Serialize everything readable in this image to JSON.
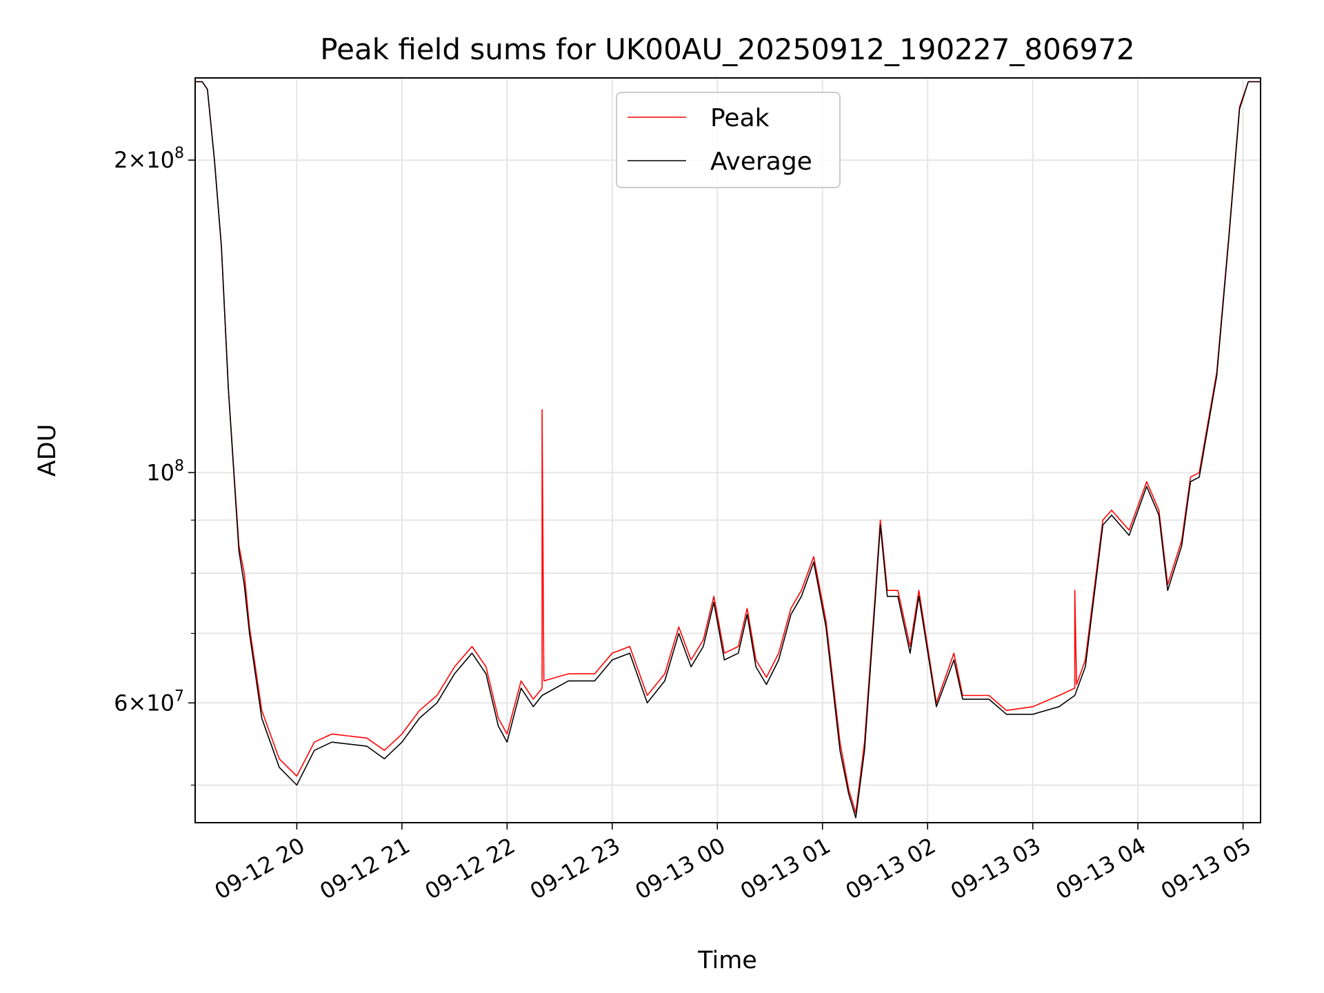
{
  "chart_data": {
    "type": "line",
    "title": "Peak field sums for UK00AU_20250912_190227_806972",
    "xlabel": "Time",
    "ylabel": "ADU",
    "yscale": "log",
    "ylim": [
      46000000,
      240000000
    ],
    "xlim": [
      "2025-09-12 19:02",
      "2025-09-13 05:10"
    ],
    "grid": true,
    "legend_position": "top-center",
    "x_ticks": [
      {
        "t": "2025-09-12 20:00",
        "label": "09-12 20"
      },
      {
        "t": "2025-09-12 21:00",
        "label": "09-12 21"
      },
      {
        "t": "2025-09-12 22:00",
        "label": "09-12 22"
      },
      {
        "t": "2025-09-12 23:00",
        "label": "09-12 23"
      },
      {
        "t": "2025-09-13 00:00",
        "label": "09-13 00"
      },
      {
        "t": "2025-09-13 01:00",
        "label": "09-13 01"
      },
      {
        "t": "2025-09-13 02:00",
        "label": "09-13 02"
      },
      {
        "t": "2025-09-13 03:00",
        "label": "09-13 03"
      },
      {
        "t": "2025-09-13 04:00",
        "label": "09-13 04"
      },
      {
        "t": "2025-09-13 05:00",
        "label": "09-13 05"
      }
    ],
    "y_ticks": [
      {
        "value": 200000000,
        "mantissa": "2",
        "exp": "8"
      },
      {
        "value": 100000000,
        "mantissa": "",
        "exp": "8"
      },
      {
        "value": 60000000,
        "mantissa": "6",
        "exp": "7"
      }
    ],
    "y_minor_ticks": [
      50000000,
      70000000,
      80000000,
      90000000
    ],
    "series": [
      {
        "name": "Peak",
        "color": "#ff0000",
        "points": [
          [
            "2025-09-12 19:02",
            238000000
          ],
          [
            "2025-09-12 19:06",
            238000000
          ],
          [
            "2025-09-12 19:09",
            234000000
          ],
          [
            "2025-09-12 19:13",
            200000000
          ],
          [
            "2025-09-12 19:17",
            165000000
          ],
          [
            "2025-09-12 19:21",
            120000000
          ],
          [
            "2025-09-12 19:27",
            85000000
          ],
          [
            "2025-09-12 19:30",
            80000000
          ],
          [
            "2025-09-12 19:33",
            71000000
          ],
          [
            "2025-09-12 19:40",
            59000000
          ],
          [
            "2025-09-12 19:50",
            53000000
          ],
          [
            "2025-09-12 20:00",
            51000000
          ],
          [
            "2025-09-12 20:10",
            55000000
          ],
          [
            "2025-09-12 20:20",
            56000000
          ],
          [
            "2025-09-12 20:40",
            55500000
          ],
          [
            "2025-09-12 20:50",
            54000000
          ],
          [
            "2025-09-12 21:00",
            56000000
          ],
          [
            "2025-09-12 21:10",
            59000000
          ],
          [
            "2025-09-12 21:20",
            61000000
          ],
          [
            "2025-09-12 21:30",
            65000000
          ],
          [
            "2025-09-12 21:40",
            68000000
          ],
          [
            "2025-09-12 21:48",
            65000000
          ],
          [
            "2025-09-12 21:55",
            58000000
          ],
          [
            "2025-09-12 22:00",
            56000000
          ],
          [
            "2025-09-12 22:08",
            63000000
          ],
          [
            "2025-09-12 22:15",
            60500000
          ],
          [
            "2025-09-12 22:20",
            62000000
          ],
          [
            "2025-09-12 22:20",
            115000000
          ],
          [
            "2025-09-12 22:21",
            63000000
          ],
          [
            "2025-09-12 22:35",
            64000000
          ],
          [
            "2025-09-12 22:50",
            64000000
          ],
          [
            "2025-09-12 23:00",
            67000000
          ],
          [
            "2025-09-12 23:10",
            68000000
          ],
          [
            "2025-09-12 23:20",
            61000000
          ],
          [
            "2025-09-12 23:30",
            64000000
          ],
          [
            "2025-09-12 23:38",
            71000000
          ],
          [
            "2025-09-12 23:45",
            66000000
          ],
          [
            "2025-09-12 23:52",
            69000000
          ],
          [
            "2025-09-12 23:58",
            76000000
          ],
          [
            "2025-09-13 00:04",
            67000000
          ],
          [
            "2025-09-13 00:12",
            68000000
          ],
          [
            "2025-09-13 00:17",
            74000000
          ],
          [
            "2025-09-13 00:22",
            66000000
          ],
          [
            "2025-09-13 00:28",
            63500000
          ],
          [
            "2025-09-13 00:35",
            67000000
          ],
          [
            "2025-09-13 00:42",
            74000000
          ],
          [
            "2025-09-13 00:48",
            77000000
          ],
          [
            "2025-09-13 00:55",
            83000000
          ],
          [
            "2025-09-13 01:02",
            72000000
          ],
          [
            "2025-09-13 01:10",
            55000000
          ],
          [
            "2025-09-13 01:15",
            49500000
          ],
          [
            "2025-09-13 01:19",
            47000000
          ],
          [
            "2025-09-13 01:24",
            55000000
          ],
          [
            "2025-09-13 01:30",
            76000000
          ],
          [
            "2025-09-13 01:33",
            90000000
          ],
          [
            "2025-09-13 01:37",
            77000000
          ],
          [
            "2025-09-13 01:43",
            77000000
          ],
          [
            "2025-09-13 01:50",
            68000000
          ],
          [
            "2025-09-13 01:55",
            77000000
          ],
          [
            "2025-09-13 02:05",
            60000000
          ],
          [
            "2025-09-13 02:15",
            67000000
          ],
          [
            "2025-09-13 02:20",
            61000000
          ],
          [
            "2025-09-13 02:35",
            61000000
          ],
          [
            "2025-09-13 02:45",
            59000000
          ],
          [
            "2025-09-13 03:00",
            59500000
          ],
          [
            "2025-09-13 03:15",
            61000000
          ],
          [
            "2025-09-13 03:24",
            62000000
          ],
          [
            "2025-09-13 03:24",
            77000000
          ],
          [
            "2025-09-13 03:25",
            62500000
          ],
          [
            "2025-09-13 03:30",
            66000000
          ],
          [
            "2025-09-13 03:40",
            90000000
          ],
          [
            "2025-09-13 03:45",
            92000000
          ],
          [
            "2025-09-13 03:55",
            88000000
          ],
          [
            "2025-09-13 04:05",
            98000000
          ],
          [
            "2025-09-13 04:12",
            92000000
          ],
          [
            "2025-09-13 04:17",
            78000000
          ],
          [
            "2025-09-13 04:25",
            86000000
          ],
          [
            "2025-09-13 04:30",
            99000000
          ],
          [
            "2025-09-13 04:35",
            100000000
          ],
          [
            "2025-09-13 04:45",
            125000000
          ],
          [
            "2025-09-13 04:52",
            170000000
          ],
          [
            "2025-09-13 04:58",
            225000000
          ],
          [
            "2025-09-13 05:03",
            238000000
          ],
          [
            "2025-09-13 05:10",
            238000000
          ]
        ]
      },
      {
        "name": "Average",
        "color": "#000000",
        "points": [
          [
            "2025-09-12 19:02",
            238000000
          ],
          [
            "2025-09-12 19:06",
            238000000
          ],
          [
            "2025-09-12 19:09",
            234000000
          ],
          [
            "2025-09-12 19:13",
            200000000
          ],
          [
            "2025-09-12 19:17",
            165000000
          ],
          [
            "2025-09-12 19:21",
            120000000
          ],
          [
            "2025-09-12 19:27",
            84000000
          ],
          [
            "2025-09-12 19:30",
            78000000
          ],
          [
            "2025-09-12 19:33",
            70000000
          ],
          [
            "2025-09-12 19:40",
            58000000
          ],
          [
            "2025-09-12 19:50",
            52000000
          ],
          [
            "2025-09-12 20:00",
            50000000
          ],
          [
            "2025-09-12 20:10",
            54000000
          ],
          [
            "2025-09-12 20:20",
            55000000
          ],
          [
            "2025-09-12 20:40",
            54500000
          ],
          [
            "2025-09-12 20:50",
            53000000
          ],
          [
            "2025-09-12 21:00",
            55000000
          ],
          [
            "2025-09-12 21:10",
            58000000
          ],
          [
            "2025-09-12 21:20",
            60000000
          ],
          [
            "2025-09-12 21:30",
            64000000
          ],
          [
            "2025-09-12 21:40",
            67000000
          ],
          [
            "2025-09-12 21:48",
            64000000
          ],
          [
            "2025-09-12 21:55",
            57000000
          ],
          [
            "2025-09-12 22:00",
            55000000
          ],
          [
            "2025-09-12 22:08",
            62000000
          ],
          [
            "2025-09-12 22:15",
            59500000
          ],
          [
            "2025-09-12 22:20",
            61000000
          ],
          [
            "2025-09-12 22:35",
            63000000
          ],
          [
            "2025-09-12 22:50",
            63000000
          ],
          [
            "2025-09-12 23:00",
            66000000
          ],
          [
            "2025-09-12 23:10",
            67000000
          ],
          [
            "2025-09-12 23:20",
            60000000
          ],
          [
            "2025-09-12 23:30",
            63000000
          ],
          [
            "2025-09-12 23:38",
            70000000
          ],
          [
            "2025-09-12 23:45",
            65000000
          ],
          [
            "2025-09-12 23:52",
            68000000
          ],
          [
            "2025-09-12 23:58",
            75000000
          ],
          [
            "2025-09-13 00:04",
            66000000
          ],
          [
            "2025-09-13 00:12",
            67000000
          ],
          [
            "2025-09-13 00:17",
            73000000
          ],
          [
            "2025-09-13 00:22",
            65000000
          ],
          [
            "2025-09-13 00:28",
            62500000
          ],
          [
            "2025-09-13 00:35",
            66000000
          ],
          [
            "2025-09-13 00:42",
            73000000
          ],
          [
            "2025-09-13 00:48",
            76000000
          ],
          [
            "2025-09-13 00:55",
            82000000
          ],
          [
            "2025-09-13 01:02",
            71000000
          ],
          [
            "2025-09-13 01:10",
            54000000
          ],
          [
            "2025-09-13 01:15",
            49000000
          ],
          [
            "2025-09-13 01:19",
            46500000
          ],
          [
            "2025-09-13 01:24",
            54000000
          ],
          [
            "2025-09-13 01:30",
            75000000
          ],
          [
            "2025-09-13 01:33",
            89000000
          ],
          [
            "2025-09-13 01:37",
            76000000
          ],
          [
            "2025-09-13 01:43",
            76000000
          ],
          [
            "2025-09-13 01:50",
            67000000
          ],
          [
            "2025-09-13 01:55",
            76000000
          ],
          [
            "2025-09-13 02:05",
            59500000
          ],
          [
            "2025-09-13 02:15",
            66000000
          ],
          [
            "2025-09-13 02:20",
            60500000
          ],
          [
            "2025-09-13 02:35",
            60500000
          ],
          [
            "2025-09-13 02:45",
            58500000
          ],
          [
            "2025-09-13 03:00",
            58500000
          ],
          [
            "2025-09-13 03:15",
            59500000
          ],
          [
            "2025-09-13 03:24",
            61000000
          ],
          [
            "2025-09-13 03:30",
            65000000
          ],
          [
            "2025-09-13 03:40",
            89000000
          ],
          [
            "2025-09-13 03:45",
            91000000
          ],
          [
            "2025-09-13 03:55",
            87000000
          ],
          [
            "2025-09-13 04:05",
            97000000
          ],
          [
            "2025-09-13 04:12",
            91000000
          ],
          [
            "2025-09-13 04:17",
            77000000
          ],
          [
            "2025-09-13 04:25",
            85000000
          ],
          [
            "2025-09-13 04:30",
            98000000
          ],
          [
            "2025-09-13 04:35",
            99000000
          ],
          [
            "2025-09-13 04:45",
            124000000
          ],
          [
            "2025-09-13 04:52",
            169000000
          ],
          [
            "2025-09-13 04:58",
            224000000
          ],
          [
            "2025-09-13 05:03",
            238000000
          ],
          [
            "2025-09-13 05:10",
            238000000
          ]
        ]
      }
    ]
  }
}
